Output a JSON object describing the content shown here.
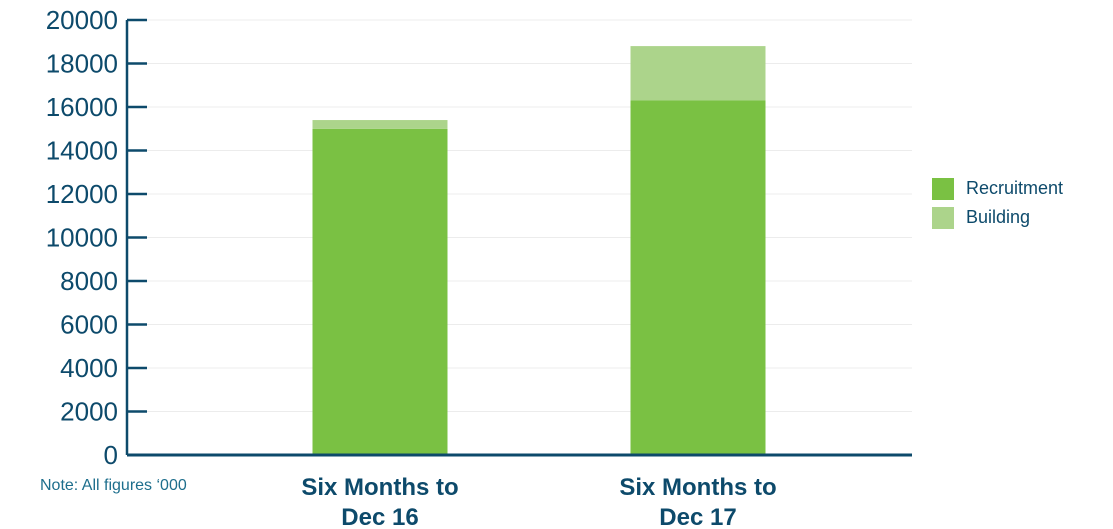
{
  "chart_data": {
    "type": "bar",
    "stacked": true,
    "categories": [
      "Six Months to Dec 16",
      "Six Months to Dec 17"
    ],
    "category_lines": [
      [
        "Six Months to",
        "Dec 16"
      ],
      [
        "Six Months to",
        "Dec 17"
      ]
    ],
    "series": [
      {
        "name": "Recruitment",
        "color": "#7ac143",
        "values": [
          15000,
          16300
        ]
      },
      {
        "name": "Building",
        "color": "#acd48b",
        "values": [
          400,
          2500
        ]
      }
    ],
    "ylim": [
      0,
      20000
    ],
    "yticks": [
      "0",
      "2000",
      "4000",
      "6000",
      "8000",
      "10000",
      "12000",
      "14000",
      "16000",
      "18000",
      "20000"
    ],
    "grid": true,
    "legend_position": "right"
  },
  "note": "Note: All figures ‘000",
  "colors": {
    "axis": "#0d4a6b",
    "text": "#0d4a6b",
    "grid": "#ececec"
  }
}
